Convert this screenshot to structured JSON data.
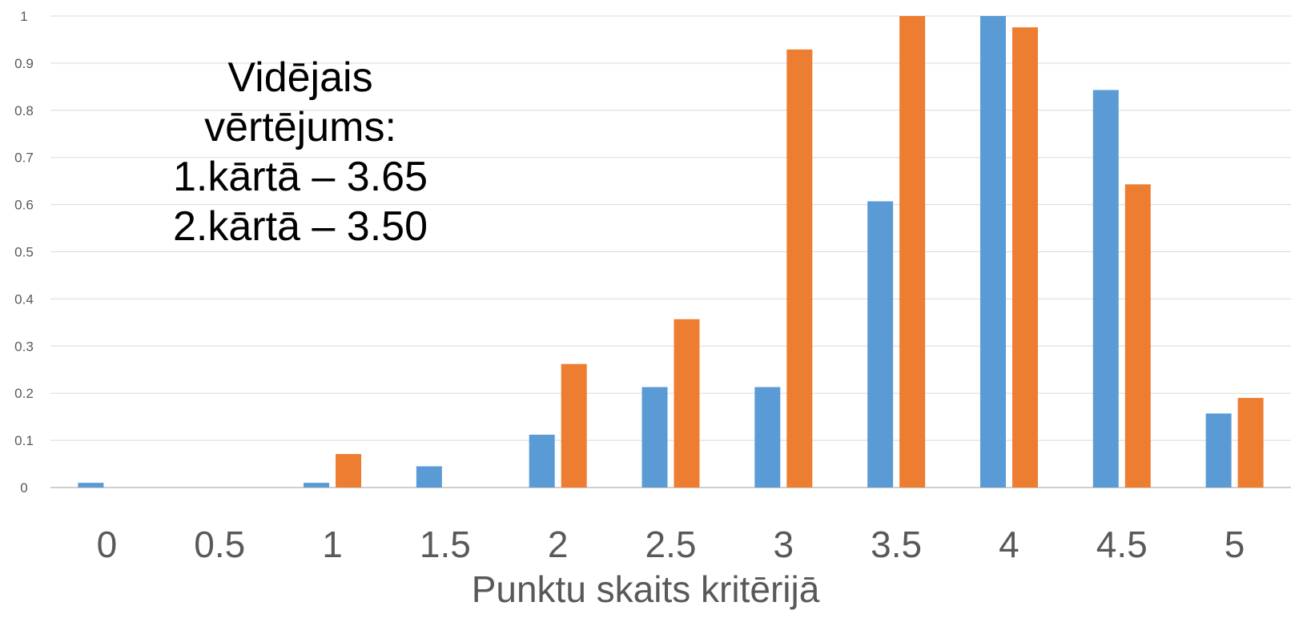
{
  "chart_data": {
    "type": "bar",
    "categories": [
      "0",
      "0.5",
      "1",
      "1.5",
      "2",
      "2.5",
      "3",
      "3.5",
      "4",
      "4.5",
      "5"
    ],
    "series": [
      {
        "color": "#5B9BD5",
        "values": [
          0.01,
          0,
          0.01,
          0.045,
          0.112,
          0.213,
          0.213,
          0.607,
          1.0,
          0.843,
          0.157
        ]
      },
      {
        "color": "#ED7D31",
        "values": [
          0,
          0,
          0.071,
          0,
          0.262,
          0.357,
          0.929,
          1.0,
          0.976,
          0.643,
          0.19
        ]
      }
    ],
    "yticks": [
      "0",
      "0.1",
      "0.2",
      "0.3",
      "0.4",
      "0.5",
      "0.6",
      "0.7",
      "0.8",
      "0.9",
      "1"
    ],
    "ylim": [
      0,
      1
    ],
    "xlabel": "Punktu skaits kritērijā",
    "ylabel": "",
    "grid": true,
    "legend": "none",
    "annotation": {
      "lines": [
        "Vidējais",
        "vērtējums:",
        "1.kārtā – 3.65",
        "2.kārtā – 3.50"
      ]
    }
  }
}
